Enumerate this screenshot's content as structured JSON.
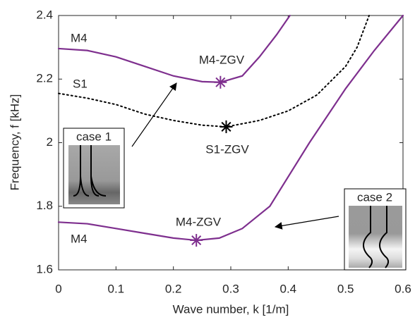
{
  "chart_data": {
    "type": "line",
    "xlabel": "Wave number, k [1/m]",
    "ylabel": "Frequency, f [kHz]",
    "xlim": [
      0,
      0.6
    ],
    "ylim": [
      1.6,
      2.4
    ],
    "xticks": [
      0,
      0.1,
      0.2,
      0.3,
      0.4,
      0.5,
      0.6
    ],
    "yticks": [
      1.6,
      1.8,
      2,
      2.2,
      2.4
    ],
    "grid": false,
    "series": [
      {
        "name": "M4",
        "color": "#7e2f8e",
        "style": "solid",
        "x": [
          0,
          0.05,
          0.1,
          0.15,
          0.2,
          0.25,
          0.282,
          0.32,
          0.35,
          0.38,
          0.403
        ],
        "values": [
          2.296,
          2.29,
          2.27,
          2.24,
          2.21,
          2.192,
          2.19,
          2.21,
          2.27,
          2.34,
          2.4
        ]
      },
      {
        "name": "S1",
        "color": "#000000",
        "style": "dotted",
        "x": [
          0,
          0.05,
          0.1,
          0.15,
          0.2,
          0.25,
          0.292,
          0.35,
          0.4,
          0.45,
          0.5,
          0.52,
          0.541
        ],
        "values": [
          2.155,
          2.14,
          2.12,
          2.09,
          2.07,
          2.055,
          2.05,
          2.07,
          2.1,
          2.15,
          2.24,
          2.3,
          2.4
        ]
      },
      {
        "name": "M4",
        "color": "#7e2f8e",
        "style": "solid",
        "x": [
          0,
          0.05,
          0.1,
          0.15,
          0.2,
          0.24,
          0.28,
          0.32,
          0.368,
          0.437,
          0.5,
          0.55,
          0.6
        ],
        "values": [
          1.75,
          1.745,
          1.73,
          1.715,
          1.7,
          1.693,
          1.7,
          1.73,
          1.8,
          2.0,
          2.17,
          2.29,
          2.4
        ]
      }
    ],
    "markers": [
      {
        "label": "M4-ZGV",
        "x": 0.282,
        "y": 2.19,
        "color": "#7e2f8e"
      },
      {
        "label": "S1-ZGV",
        "x": 0.292,
        "y": 2.05,
        "color": "#000000"
      },
      {
        "label": "M4-ZGV",
        "x": 0.24,
        "y": 1.693,
        "color": "#7e2f8e"
      }
    ],
    "insets": [
      {
        "label": "case 1"
      },
      {
        "label": "case 2"
      }
    ]
  }
}
